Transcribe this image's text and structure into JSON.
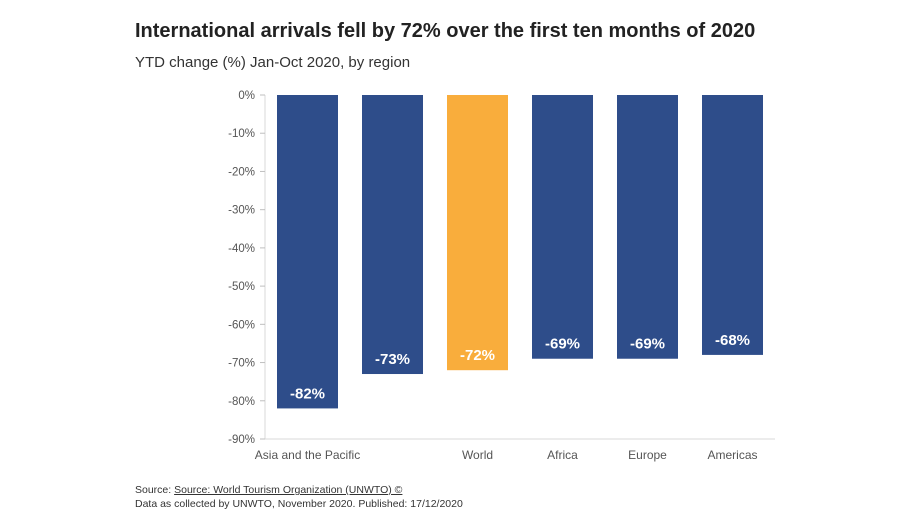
{
  "title": "International arrivals fell by 72% over the first ten months of 2020",
  "subtitle": "YTD change (%) Jan-Oct 2020, by region",
  "source": {
    "prefix": "Source: ",
    "link_text": "Source: World Tourism Organization (UNWTO) ©",
    "note": "Data as collected by UNWTO, November 2020. Published: 17/12/2020"
  },
  "colors": {
    "primary": "#2e4d8a",
    "highlight": "#f9ad3c"
  },
  "chart_data": {
    "type": "bar",
    "categories": [
      "Asia and the Pacific",
      "",
      "World",
      "Africa",
      "Europe",
      "Americas"
    ],
    "values": [
      -82,
      -73,
      -72,
      -69,
      -69,
      -68
    ],
    "data_labels": [
      "-82%",
      "-73%",
      "-72%",
      "-69%",
      "-69%",
      "-68%"
    ],
    "highlight_index": 2,
    "ylim": [
      -90,
      0
    ],
    "yticks": [
      0,
      -10,
      -20,
      -30,
      -40,
      -50,
      -60,
      -70,
      -80,
      -90
    ],
    "ytick_labels": [
      "0%",
      "-10%",
      "-20%",
      "-30%",
      "-40%",
      "-50%",
      "-60%",
      "-70%",
      "-80%",
      "-90%"
    ],
    "xlabel": "",
    "ylabel": "",
    "grid": false,
    "legend": "none"
  }
}
